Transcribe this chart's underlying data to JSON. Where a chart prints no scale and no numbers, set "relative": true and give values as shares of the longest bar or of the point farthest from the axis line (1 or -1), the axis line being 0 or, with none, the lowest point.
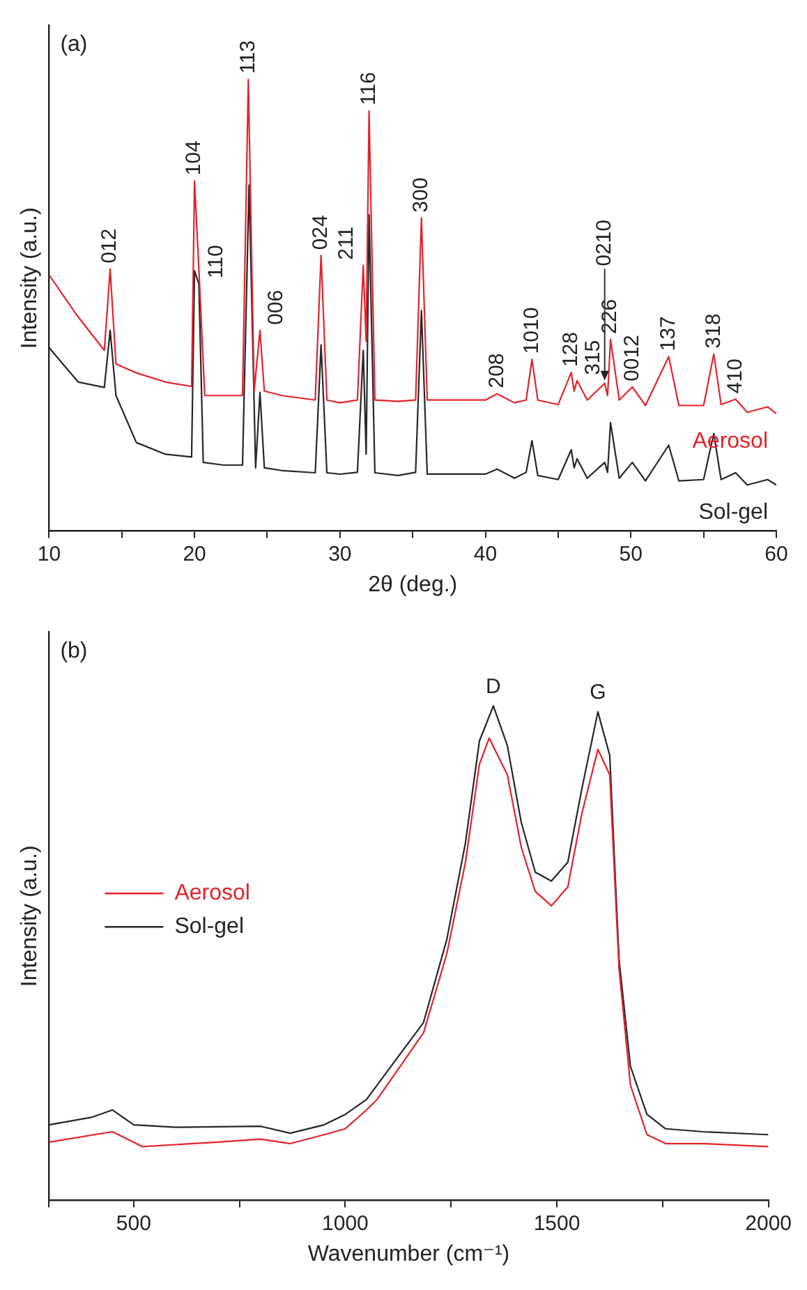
{
  "chart_data": [
    {
      "type": "line",
      "relative": true,
      "xlabel": "2θ (deg.)",
      "ylabel": "Intensity (a.u.)",
      "xlim": [
        10,
        60
      ],
      "xticks": [
        10,
        {
          "value": 15,
          "label": null
        },
        20,
        {
          "value": 25,
          "label": null
        },
        30,
        {
          "value": 35,
          "label": null
        },
        40,
        {
          "value": 45,
          "label": null
        },
        50,
        {
          "value": 55,
          "label": null
        },
        60
      ],
      "series": [
        {
          "name": "Aerosol",
          "color": "#e3232b",
          "x": [
            10,
            12,
            13.8,
            14.2,
            14.6,
            16,
            18,
            19.8,
            20.0,
            20.35,
            20.7,
            22,
            23.3,
            23.7,
            24.1,
            24.5,
            24.8,
            26,
            28.3,
            28.7,
            29.1,
            30,
            31.2,
            31.6,
            31.8,
            32.0,
            32.4,
            34,
            35.2,
            35.6,
            36,
            40,
            40.8,
            42,
            42.8,
            43.2,
            43.6,
            45,
            45.9,
            46.1,
            46.3,
            47,
            48.2,
            48.4,
            48.6,
            49.2,
            50.1,
            51,
            52.6,
            53.3,
            55,
            55.7,
            56.2,
            57.2,
            58,
            59.4,
            60
          ],
          "values": [
            0.567,
            0.474,
            0.4,
            0.58,
            0.37,
            0.35,
            0.33,
            0.32,
            0.775,
            0.547,
            0.3,
            0.3,
            0.3,
            1.0,
            0.31,
            0.444,
            0.31,
            0.3,
            0.29,
            0.61,
            0.29,
            0.284,
            0.29,
            0.588,
            0.42,
            0.93,
            0.29,
            0.287,
            0.29,
            0.693,
            0.29,
            0.29,
            0.304,
            0.284,
            0.29,
            0.38,
            0.29,
            0.28,
            0.351,
            0.31,
            0.333,
            0.29,
            0.327,
            0.3,
            0.424,
            0.29,
            0.319,
            0.278,
            0.386,
            0.278,
            0.278,
            0.392,
            0.28,
            0.292,
            0.263,
            0.275,
            0.26
          ]
        },
        {
          "name": "Sol-gel",
          "color": "#262626",
          "x": [
            10,
            12,
            13.8,
            14.2,
            14.6,
            16,
            18,
            19.8,
            20.0,
            20.3,
            20.6,
            22,
            23.3,
            23.75,
            24.2,
            24.5,
            24.8,
            26,
            28.3,
            28.7,
            29.1,
            30,
            31.2,
            31.6,
            31.8,
            32.0,
            32.4,
            34,
            35.2,
            35.6,
            36,
            40,
            40.8,
            42,
            42.8,
            43.2,
            43.6,
            45,
            45.9,
            46.1,
            46.3,
            47,
            48.2,
            48.4,
            48.6,
            49.2,
            50.1,
            51,
            52.6,
            53.3,
            55,
            55.7,
            56.2,
            57.2,
            58,
            59.4,
            60
          ],
          "values": [
            0.406,
            0.33,
            0.318,
            0.444,
            0.3,
            0.196,
            0.17,
            0.164,
            0.576,
            0.547,
            0.152,
            0.146,
            0.146,
            0.766,
            0.14,
            0.307,
            0.14,
            0.134,
            0.129,
            0.412,
            0.129,
            0.126,
            0.13,
            0.4,
            0.17,
            0.7,
            0.129,
            0.123,
            0.13,
            0.488,
            0.126,
            0.126,
            0.137,
            0.117,
            0.13,
            0.2,
            0.123,
            0.114,
            0.18,
            0.14,
            0.16,
            0.117,
            0.152,
            0.13,
            0.24,
            0.117,
            0.152,
            0.111,
            0.19,
            0.111,
            0.114,
            0.216,
            0.114,
            0.129,
            0.102,
            0.114,
            0.102
          ]
        }
      ],
      "annotations": [
        "(a)",
        {
          "text": "012",
          "x": 14.2,
          "y": 0.58
        },
        {
          "text": "104",
          "x": 20.0,
          "y": 0.775
        },
        {
          "text": "110",
          "x": 20.35,
          "y": 0.547
        },
        {
          "text": "113",
          "x": 23.7,
          "y": 1.0
        },
        {
          "text": "006",
          "x": 24.5,
          "y": 0.444
        },
        {
          "text": "024",
          "x": 28.7,
          "y": 0.61
        },
        {
          "text": "211",
          "x": 31.6,
          "y": 0.588
        },
        {
          "text": "116",
          "x": 32.0,
          "y": 0.93
        },
        {
          "text": "300",
          "x": 35.6,
          "y": 0.693
        },
        {
          "text": "208",
          "x": 40.8,
          "y": 0.304
        },
        {
          "text": "1010",
          "x": 43.2,
          "y": 0.38
        },
        {
          "text": "128",
          "x": 45.9,
          "y": 0.351
        },
        {
          "text": "315",
          "x": 46.3,
          "y": 0.333
        },
        {
          "text": "0210",
          "x": 48.2,
          "y": 0.327
        },
        {
          "text": "226",
          "x": 48.6,
          "y": 0.424
        },
        {
          "text": "0012",
          "x": 50.1,
          "y": 0.319
        },
        {
          "text": "137",
          "x": 52.6,
          "y": 0.386
        },
        {
          "text": "318",
          "x": 55.7,
          "y": 0.392
        },
        {
          "text": "410",
          "x": 57.2,
          "y": 0.292
        }
      ]
    },
    {
      "type": "line",
      "relative": true,
      "xlabel": "Wavenumber (cm⁻¹)",
      "ylabel": "Intensity (a.u.)",
      "legend": "left",
      "xlim": [
        300,
        2000
      ],
      "xticks": [
        {
          "value": 300,
          "label": null
        },
        500,
        {
          "value": 750,
          "label": null
        },
        1000,
        {
          "value": 1250,
          "label": null
        },
        1500,
        {
          "value": 1750,
          "label": null
        },
        2000
      ],
      "series": [
        {
          "name": "Aerosol",
          "color": "#e3232b",
          "x": [
            300,
            450,
            520,
            700,
            800,
            870,
            950,
            1000,
            1050,
            1075,
            1185,
            1240,
            1284,
            1317,
            1340,
            1383,
            1416,
            1449,
            1487,
            1526,
            1559,
            1597,
            1625,
            1647,
            1674,
            1713,
            1757,
            1845,
            2000
          ],
          "values": [
            0.118,
            0.139,
            0.109,
            0.118,
            0.124,
            0.115,
            0.133,
            0.145,
            0.183,
            0.204,
            0.339,
            0.499,
            0.684,
            0.882,
            0.935,
            0.861,
            0.714,
            0.625,
            0.596,
            0.634,
            0.782,
            0.912,
            0.861,
            0.469,
            0.233,
            0.133,
            0.115,
            0.115,
            0.109
          ]
        },
        {
          "name": "Sol-gel",
          "color": "#262626",
          "x": [
            300,
            400,
            450,
            500,
            600,
            800,
            870,
            950,
            1000,
            1050,
            1075,
            1185,
            1240,
            1284,
            1317,
            1350,
            1383,
            1416,
            1449,
            1487,
            1526,
            1559,
            1597,
            1625,
            1647,
            1674,
            1713,
            1757,
            1845,
            2000
          ],
          "values": [
            0.153,
            0.168,
            0.183,
            0.153,
            0.148,
            0.15,
            0.136,
            0.153,
            0.174,
            0.204,
            0.233,
            0.36,
            0.528,
            0.723,
            0.929,
            1.0,
            0.92,
            0.764,
            0.664,
            0.646,
            0.684,
            0.832,
            0.988,
            0.9,
            0.487,
            0.271,
            0.174,
            0.145,
            0.139,
            0.133
          ]
        }
      ],
      "annotations": [
        "(b)",
        {
          "text": "D",
          "x": 1350,
          "y": 1.0
        },
        {
          "text": "G",
          "x": 1597,
          "y": 0.988
        }
      ]
    }
  ]
}
